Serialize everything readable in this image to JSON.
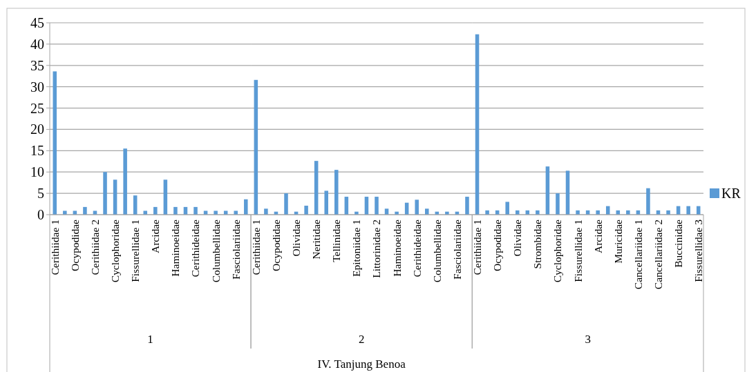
{
  "chart_data": [
    {
      "type": "bar",
      "xlabel": "1",
      "grid": "y",
      "ylim": [
        0,
        45
      ],
      "yticks": [
        0,
        5,
        10,
        15,
        20,
        25,
        30,
        35,
        40,
        45
      ],
      "categories": [
        "Cerithiidae 1",
        null,
        "Ocypodidae",
        null,
        "Cerithiidae 2",
        null,
        "Cyclophoridae",
        null,
        "Fissurellidae 1",
        null,
        "Arcidae",
        null,
        "Haminoeidae",
        null,
        "Cerithideidae",
        null,
        "Columbellidae",
        null,
        "Fasciolariidae",
        null
      ],
      "series": [
        {
          "color": "#5b9bd5",
          "values": [
            33.6,
            0.9,
            0.9,
            1.8,
            0.9,
            10,
            8.2,
            15.5,
            4.5,
            0.9,
            1.8,
            8.2,
            1.8,
            1.8,
            1.8,
            0.9,
            0.9,
            0.9,
            0.9,
            3.6
          ]
        }
      ]
    },
    {
      "type": "bar",
      "xlabel": "2",
      "grid": "y",
      "tick_labels": "x",
      "ylim": [
        0,
        45
      ],
      "yticks": [
        0,
        5,
        10,
        15,
        20,
        25,
        30,
        35,
        40,
        45
      ],
      "annotations": [
        "IV. Tanjung Benoa"
      ],
      "categories": [
        "Cerithiidae 1",
        null,
        "Ocypodidae",
        null,
        "Olividae",
        null,
        "Neritidae",
        null,
        "Tellinidae",
        null,
        "Epitoniidae 1",
        null,
        "Littorinidae 2",
        null,
        "Haminoeidae",
        null,
        "Cerithideidae",
        null,
        "Columbellidae",
        null,
        "Fasciolariidae",
        null
      ],
      "series": [
        {
          "color": "#5b9bd5",
          "values": [
            31.6,
            1.4,
            0.7,
            5,
            0.7,
            2.1,
            12.6,
            5.6,
            10.5,
            4.2,
            0.7,
            4.2,
            4.2,
            1.4,
            0.7,
            2.8,
            3.5,
            1.4,
            0.7,
            0.7,
            0.7,
            4.2
          ]
        }
      ]
    },
    {
      "type": "bar",
      "xlabel": "3",
      "grid": "y",
      "tick_labels": "x",
      "legend": "right",
      "ylim": [
        0,
        45
      ],
      "yticks": [
        0,
        5,
        10,
        15,
        20,
        25,
        30,
        35,
        40,
        45
      ],
      "categories": [
        "Cerithiidae 1",
        null,
        "Ocypodidae",
        null,
        "Olividae",
        null,
        "Strombidae",
        null,
        "Cyclophoridae",
        null,
        "Fissurellidae 1",
        null,
        "Arcidae",
        null,
        "Muricidae",
        null,
        "Cancellariidae 1",
        null,
        "Cancellariidae 2",
        null,
        "Buccinidae",
        null,
        "Fissurellidae 3"
      ],
      "series": [
        {
          "name": "KR",
          "color": "#5b9bd5",
          "values": [
            42.3,
            1,
            1,
            3,
            1,
            1,
            1,
            11.3,
            5,
            10.3,
            1,
            1,
            1,
            2,
            1,
            1,
            1,
            6.2,
            1,
            1,
            2,
            2,
            2
          ]
        }
      ]
    }
  ]
}
